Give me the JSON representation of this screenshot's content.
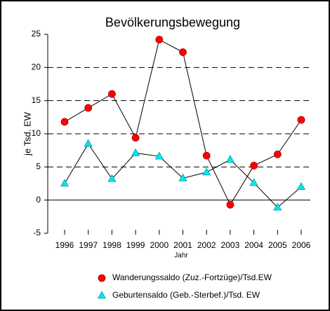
{
  "chart_data": {
    "type": "line",
    "title": "Bevölkerungsbewegung",
    "y_label": "je Tsd. EW",
    "x_label": "Jahr",
    "categories": [
      "1996",
      "1997",
      "1998",
      "1999",
      "2000",
      "2001",
      "2002",
      "2003",
      "2004",
      "2005",
      "2006"
    ],
    "series": [
      {
        "name": "Wanderungssaldo (Zuz.-Fortzüge)/Tsd.EW",
        "color": "#ff0000",
        "marker": "circle",
        "values": [
          11.8,
          13.9,
          16.0,
          9.4,
          24.2,
          22.3,
          6.7,
          -0.7,
          5.2,
          6.9,
          12.1
        ]
      },
      {
        "name": "Geburtensaldo (Geb.-Sterbef.)/Tsd. EW",
        "color": "#00e5ee",
        "marker": "triangle",
        "values": [
          2.5,
          8.5,
          3.2,
          7.1,
          6.6,
          3.3,
          4.2,
          6.1,
          2.6,
          -1.1,
          2.0
        ]
      }
    ],
    "ylim": [
      -5,
      25
    ],
    "yticks": [
      -5,
      0,
      5,
      10,
      15,
      20,
      25
    ],
    "grid": true,
    "legend": "bottom"
  }
}
